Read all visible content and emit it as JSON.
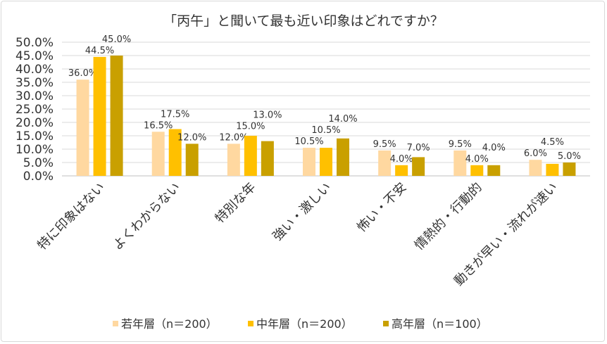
{
  "chart_data": {
    "type": "bar",
    "title": "「丙午」と聞いて最も近い印象はどれですか？",
    "xlabel": "",
    "ylabel": "",
    "ylim": [
      0,
      50
    ],
    "yticks": [
      "0.0%",
      "5.0%",
      "10.0%",
      "15.0%",
      "20.0%",
      "25.0%",
      "30.0%",
      "35.0%",
      "40.0%",
      "45.0%",
      "50.0%"
    ],
    "grid": true,
    "legend_position": "bottom",
    "categories": [
      "特に印象はない",
      "よくわからない",
      "特別な年",
      "強い・激しい",
      "怖い・不安",
      "情熱的・行動的",
      "動きが早い・流れが速い"
    ],
    "series": [
      {
        "name": "若年層（n＝200）",
        "color": "#FFD8A0",
        "values": [
          36.0,
          16.5,
          12.0,
          10.5,
          9.5,
          9.5,
          6.0
        ],
        "labels": [
          "36.0%",
          "16.5%",
          "12.0%",
          "10.5%",
          "9.5%",
          "9.5%",
          "6.0%"
        ]
      },
      {
        "name": "中年層（n＝200）",
        "color": "#FFC000",
        "values": [
          44.5,
          17.5,
          15.0,
          10.5,
          4.0,
          4.0,
          4.5
        ],
        "labels": [
          "44.5%",
          "17.5%",
          "15.0%",
          "10.5%",
          "4.0%",
          "4.0%",
          "4.5%"
        ]
      },
      {
        "name": "高年層（n＝100）",
        "color": "#C9A000",
        "values": [
          45.0,
          12.0,
          13.0,
          14.0,
          7.0,
          4.0,
          5.0
        ],
        "labels": [
          "45.0%",
          "12.0%",
          "13.0%",
          "14.0%",
          "7.0%",
          "4.0%",
          "5.0%"
        ]
      }
    ]
  }
}
